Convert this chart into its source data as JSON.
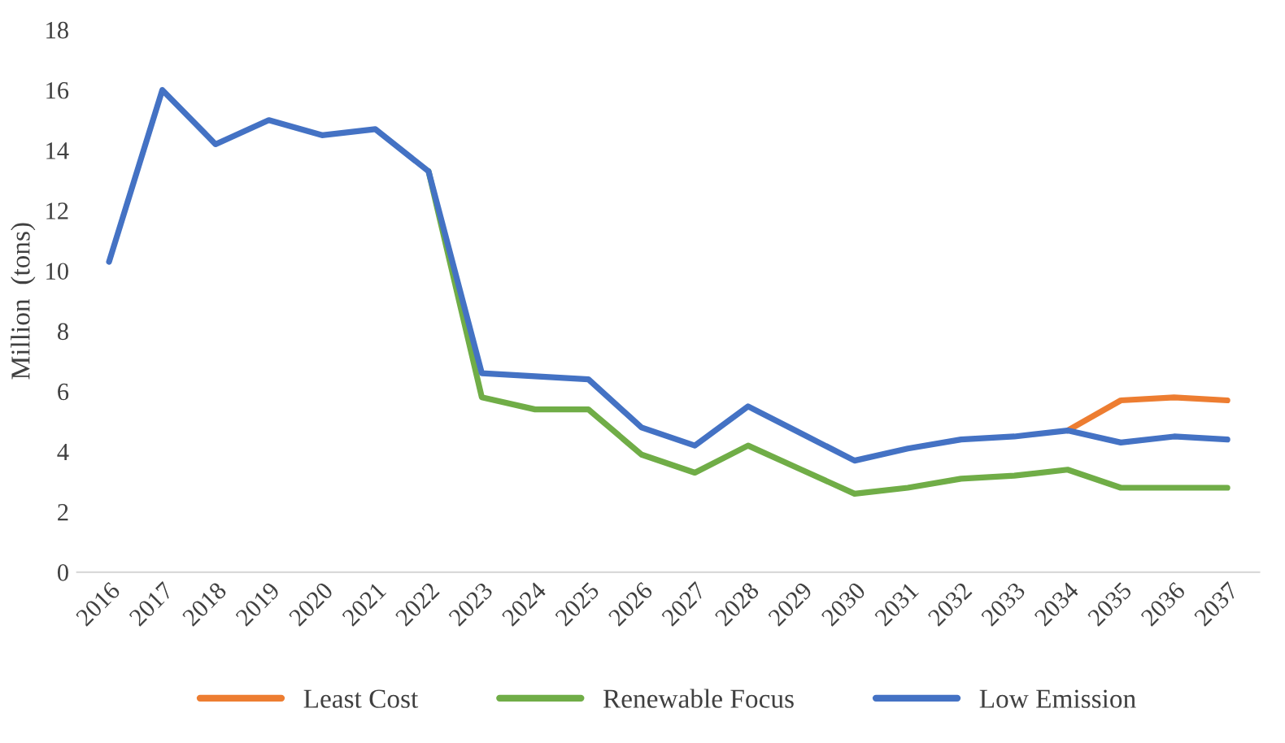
{
  "chart_data": {
    "type": "line",
    "ylabel": "Million  (tons)",
    "categories": [
      "2016",
      "2017",
      "2018",
      "2019",
      "2020",
      "2021",
      "2022",
      "2023",
      "2024",
      "2025",
      "2026",
      "2027",
      "2028",
      "2029",
      "2030",
      "2031",
      "2032",
      "2033",
      "2034",
      "2035",
      "2036",
      "2037"
    ],
    "series": [
      {
        "name": "Least Cost",
        "color": "#ed7d31",
        "values": [
          null,
          null,
          null,
          null,
          null,
          null,
          null,
          null,
          null,
          null,
          null,
          null,
          null,
          null,
          null,
          null,
          null,
          null,
          4.7,
          5.7,
          5.8,
          5.7
        ]
      },
      {
        "name": "Renewable Focus",
        "color": "#70ad47",
        "values": [
          null,
          null,
          null,
          null,
          null,
          null,
          13.3,
          5.8,
          5.4,
          5.4,
          3.9,
          3.3,
          4.2,
          3.4,
          2.6,
          2.8,
          3.1,
          3.2,
          3.4,
          2.8,
          2.8,
          2.8
        ]
      },
      {
        "name": "Low Emission",
        "color": "#4472c4",
        "values": [
          10.3,
          16.0,
          14.2,
          15.0,
          14.5,
          14.7,
          13.3,
          6.6,
          6.5,
          6.4,
          4.8,
          4.2,
          5.5,
          4.6,
          3.7,
          4.1,
          4.4,
          4.5,
          4.7,
          4.3,
          4.5,
          4.4
        ]
      }
    ],
    "ylim": [
      0,
      18
    ],
    "yticks": [
      0,
      2,
      4,
      6,
      8,
      10,
      12,
      14,
      16,
      18
    ],
    "grid": false,
    "legend": "bottom",
    "marker": "none",
    "line_style": "solid"
  }
}
